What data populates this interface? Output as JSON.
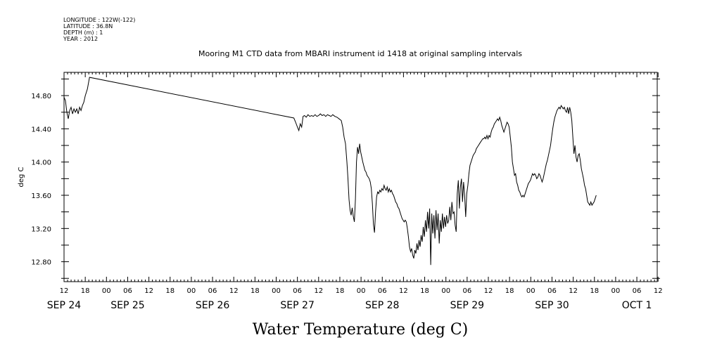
{
  "header": {
    "lines": [
      "LONGITUDE : 122W(-122)",
      "LATITUDE : 36.8N",
      "DEPTH (m) : 1",
      "YEAR : 2012"
    ]
  },
  "chart_data": {
    "type": "line",
    "title": "Mooring M1 CTD data from MBARI instrument id 1418 at original sampling intervals",
    "ylabel": "deg C",
    "xlabel": "Water Temperature (deg C)",
    "ylim": [
      12.56,
      15.08
    ],
    "yticks": [
      12.8,
      13.2,
      13.6,
      14.0,
      14.4,
      14.8
    ],
    "ytick_labels": [
      "12.80",
      "13.20",
      "13.60",
      "14.00",
      "14.40",
      "14.80"
    ],
    "xlim_hours": [
      0,
      144
    ],
    "x_hour_labels": [
      "12",
      "18",
      "00",
      "06",
      "12",
      "18",
      "00",
      "06",
      "12",
      "18",
      "00",
      "06",
      "12",
      "18",
      "00",
      "06",
      "12",
      "18",
      "00",
      "06",
      "12",
      "18",
      "00",
      "06",
      "12",
      "18",
      "00",
      "06",
      "12",
      "18",
      "00",
      "06",
      "12",
      "18",
      "00",
      "06",
      "12",
      "18",
      "00",
      "06",
      "12"
    ],
    "x_day_labels": [
      "SEP 24",
      "SEP 25",
      "SEP 26",
      "SEP 27",
      "SEP 28",
      "SEP 29",
      "SEP 30",
      "OCT 1"
    ],
    "x_day_hours": [
      0,
      18,
      42,
      66,
      90,
      114,
      138,
      162
    ],
    "series": [
      {
        "color": "#000000",
        "points": [
          [
            0,
            14.78
          ],
          [
            0.4,
            14.74
          ],
          [
            0.8,
            14.6
          ],
          [
            1.2,
            14.52
          ],
          [
            1.6,
            14.62
          ],
          [
            2.0,
            14.66
          ],
          [
            2.4,
            14.58
          ],
          [
            2.8,
            14.64
          ],
          [
            3.2,
            14.6
          ],
          [
            3.6,
            14.64
          ],
          [
            4.0,
            14.58
          ],
          [
            4.4,
            14.66
          ],
          [
            4.8,
            14.62
          ],
          [
            5.2,
            14.68
          ],
          [
            5.6,
            14.72
          ],
          [
            6,
            14.8
          ],
          [
            6.6,
            14.88
          ],
          [
            7.2,
            15.02
          ],
          [
            65,
            14.53
          ],
          [
            65.5,
            14.48
          ],
          [
            66,
            14.42
          ],
          [
            66.4,
            14.38
          ],
          [
            66.8,
            14.46
          ],
          [
            67.2,
            14.42
          ],
          [
            67.6,
            14.55
          ],
          [
            68,
            14.56
          ],
          [
            68.5,
            14.54
          ],
          [
            69,
            14.57
          ],
          [
            69.5,
            14.55
          ],
          [
            70,
            14.56
          ],
          [
            70.5,
            14.55
          ],
          [
            71,
            14.57
          ],
          [
            71.5,
            14.55
          ],
          [
            72,
            14.56
          ],
          [
            72.5,
            14.58
          ],
          [
            73,
            14.56
          ],
          [
            73.5,
            14.57
          ],
          [
            74,
            14.55
          ],
          [
            74.5,
            14.57
          ],
          [
            75,
            14.56
          ],
          [
            75.5,
            14.55
          ],
          [
            76,
            14.57
          ],
          [
            76.6,
            14.55
          ],
          [
            77.2,
            14.54
          ],
          [
            77.8,
            14.52
          ],
          [
            78.4,
            14.5
          ],
          [
            78.8,
            14.42
          ],
          [
            79.2,
            14.3
          ],
          [
            79.6,
            14.22
          ],
          [
            80.0,
            14.0
          ],
          [
            80.3,
            13.8
          ],
          [
            80.6,
            13.55
          ],
          [
            80.9,
            13.42
          ],
          [
            81.2,
            13.36
          ],
          [
            81.5,
            13.45
          ],
          [
            81.8,
            13.35
          ],
          [
            82.1,
            13.28
          ],
          [
            82.4,
            13.55
          ],
          [
            82.7,
            14.0
          ],
          [
            83.0,
            14.18
          ],
          [
            83.3,
            14.1
          ],
          [
            83.6,
            14.22
          ],
          [
            83.9,
            14.12
          ],
          [
            84.2,
            14.06
          ],
          [
            84.5,
            14.0
          ],
          [
            84.8,
            13.95
          ],
          [
            85.1,
            13.9
          ],
          [
            85.4,
            13.88
          ],
          [
            85.7,
            13.84
          ],
          [
            86.0,
            13.82
          ],
          [
            86.3,
            13.8
          ],
          [
            86.6,
            13.76
          ],
          [
            86.9,
            13.68
          ],
          [
            87.2,
            13.5
          ],
          [
            87.5,
            13.25
          ],
          [
            87.8,
            13.15
          ],
          [
            88.1,
            13.4
          ],
          [
            88.4,
            13.58
          ],
          [
            88.7,
            13.64
          ],
          [
            89.0,
            13.62
          ],
          [
            89.3,
            13.66
          ],
          [
            89.6,
            13.64
          ],
          [
            89.9,
            13.68
          ],
          [
            90.2,
            13.66
          ],
          [
            90.5,
            13.72
          ],
          [
            90.8,
            13.68
          ],
          [
            91.1,
            13.66
          ],
          [
            91.4,
            13.7
          ],
          [
            91.7,
            13.64
          ],
          [
            92.0,
            13.68
          ],
          [
            92.3,
            13.64
          ],
          [
            92.6,
            13.66
          ],
          [
            92.9,
            13.62
          ],
          [
            93.2,
            13.6
          ],
          [
            93.5,
            13.56
          ],
          [
            93.8,
            13.52
          ],
          [
            94.1,
            13.5
          ],
          [
            94.4,
            13.46
          ],
          [
            94.7,
            13.44
          ],
          [
            95.0,
            13.4
          ],
          [
            95.3,
            13.36
          ],
          [
            95.6,
            13.32
          ],
          [
            95.9,
            13.3
          ],
          [
            96.2,
            13.28
          ],
          [
            96.5,
            13.3
          ],
          [
            96.8,
            13.28
          ],
          [
            97.1,
            13.2
          ],
          [
            97.4,
            13.1
          ],
          [
            97.7,
            12.98
          ],
          [
            98.0,
            12.92
          ],
          [
            98.3,
            12.96
          ],
          [
            98.6,
            12.88
          ],
          [
            98.9,
            12.84
          ],
          [
            99.2,
            12.94
          ],
          [
            99.5,
            12.9
          ],
          [
            99.8,
            13.02
          ],
          [
            100.1,
            12.94
          ],
          [
            100.4,
            13.06
          ],
          [
            100.7,
            12.98
          ],
          [
            101.0,
            13.12
          ],
          [
            101.3,
            13.04
          ],
          [
            101.6,
            13.22
          ],
          [
            101.9,
            13.1
          ],
          [
            102.2,
            13.3
          ],
          [
            102.5,
            13.16
          ],
          [
            102.8,
            13.4
          ],
          [
            103.1,
            13.2
          ],
          [
            103.4,
            13.44
          ],
          [
            103.7,
            12.76
          ],
          [
            104.0,
            13.38
          ],
          [
            104.3,
            13.14
          ],
          [
            104.6,
            13.36
          ],
          [
            104.9,
            13.08
          ],
          [
            105.2,
            13.42
          ],
          [
            105.5,
            13.18
          ],
          [
            105.8,
            13.38
          ],
          [
            106.1,
            13.02
          ],
          [
            106.4,
            13.3
          ],
          [
            106.7,
            13.16
          ],
          [
            107.0,
            13.38
          ],
          [
            107.3,
            13.2
          ],
          [
            107.6,
            13.34
          ],
          [
            107.9,
            13.22
          ],
          [
            108.2,
            13.36
          ],
          [
            108.5,
            13.26
          ],
          [
            108.8,
            13.3
          ],
          [
            109.1,
            13.46
          ],
          [
            109.4,
            13.3
          ],
          [
            109.7,
            13.52
          ],
          [
            110.0,
            13.38
          ],
          [
            110.3,
            13.4
          ],
          [
            110.6,
            13.24
          ],
          [
            110.9,
            13.16
          ],
          [
            111.2,
            13.62
          ],
          [
            111.5,
            13.78
          ],
          [
            111.8,
            13.44
          ],
          [
            112.1,
            13.7
          ],
          [
            112.4,
            13.8
          ],
          [
            112.7,
            13.52
          ],
          [
            113.0,
            13.76
          ],
          [
            113.3,
            13.6
          ],
          [
            113.6,
            13.34
          ],
          [
            113.9,
            13.62
          ],
          [
            114.2,
            13.72
          ],
          [
            114.5,
            13.86
          ],
          [
            114.8,
            13.96
          ],
          [
            115.1,
            14.0
          ],
          [
            115.4,
            14.04
          ],
          [
            115.7,
            14.08
          ],
          [
            116.0,
            14.1
          ],
          [
            116.3,
            14.12
          ],
          [
            116.6,
            14.16
          ],
          [
            116.9,
            14.18
          ],
          [
            117.2,
            14.2
          ],
          [
            117.5,
            14.22
          ],
          [
            117.8,
            14.24
          ],
          [
            118.1,
            14.26
          ],
          [
            118.4,
            14.28
          ],
          [
            118.7,
            14.28
          ],
          [
            119.0,
            14.3
          ],
          [
            119.3,
            14.28
          ],
          [
            119.6,
            14.32
          ],
          [
            119.9,
            14.28
          ],
          [
            120.2,
            14.32
          ],
          [
            120.5,
            14.3
          ],
          [
            120.8,
            14.36
          ],
          [
            121.1,
            14.4
          ],
          [
            121.4,
            14.42
          ],
          [
            121.7,
            14.46
          ],
          [
            122.0,
            14.48
          ],
          [
            122.3,
            14.5
          ],
          [
            122.6,
            14.52
          ],
          [
            122.9,
            14.5
          ],
          [
            123.2,
            14.54
          ],
          [
            123.5,
            14.5
          ],
          [
            123.8,
            14.44
          ],
          [
            124.1,
            14.4
          ],
          [
            124.4,
            14.36
          ],
          [
            124.7,
            14.4
          ],
          [
            125.0,
            14.44
          ],
          [
            125.3,
            14.48
          ],
          [
            125.6,
            14.46
          ],
          [
            125.9,
            14.42
          ],
          [
            126.2,
            14.3
          ],
          [
            126.5,
            14.18
          ],
          [
            126.8,
            14.0
          ],
          [
            127.1,
            13.92
          ],
          [
            127.4,
            13.84
          ],
          [
            127.7,
            13.86
          ],
          [
            128.0,
            13.76
          ],
          [
            128.3,
            13.72
          ],
          [
            128.6,
            13.66
          ],
          [
            128.9,
            13.64
          ],
          [
            129.2,
            13.6
          ],
          [
            129.5,
            13.58
          ],
          [
            129.8,
            13.6
          ],
          [
            130.1,
            13.58
          ],
          [
            130.4,
            13.62
          ],
          [
            130.7,
            13.66
          ],
          [
            131.0,
            13.7
          ],
          [
            131.3,
            13.74
          ],
          [
            131.6,
            13.76
          ],
          [
            131.9,
            13.78
          ],
          [
            132.2,
            13.82
          ],
          [
            132.5,
            13.86
          ],
          [
            132.8,
            13.84
          ],
          [
            133.1,
            13.86
          ],
          [
            133.4,
            13.84
          ],
          [
            133.7,
            13.8
          ],
          [
            134.0,
            13.82
          ],
          [
            134.3,
            13.86
          ],
          [
            134.6,
            13.84
          ],
          [
            134.9,
            13.8
          ],
          [
            135.2,
            13.76
          ],
          [
            135.5,
            13.8
          ],
          [
            135.8,
            13.86
          ],
          [
            136.1,
            13.92
          ],
          [
            136.4,
            13.98
          ],
          [
            136.7,
            14.02
          ],
          [
            137.0,
            14.08
          ],
          [
            137.3,
            14.14
          ],
          [
            137.6,
            14.2
          ],
          [
            137.9,
            14.3
          ],
          [
            138.2,
            14.4
          ],
          [
            138.5,
            14.48
          ],
          [
            138.8,
            14.54
          ],
          [
            139.1,
            14.58
          ],
          [
            139.4,
            14.62
          ],
          [
            139.7,
            14.64
          ],
          [
            140.0,
            14.66
          ],
          [
            140.3,
            14.64
          ],
          [
            140.6,
            14.68
          ],
          [
            140.9,
            14.66
          ],
          [
            141.2,
            14.64
          ],
          [
            141.5,
            14.66
          ],
          [
            141.8,
            14.62
          ],
          [
            142.1,
            14.6
          ],
          [
            142.4,
            14.66
          ],
          [
            142.7,
            14.58
          ],
          [
            143.0,
            14.66
          ],
          [
            143.3,
            14.6
          ],
          [
            143.6,
            14.5
          ],
          [
            143.9,
            14.3
          ],
          [
            144.2,
            14.1
          ],
          [
            144.5,
            14.2
          ],
          [
            144.8,
            14.06
          ],
          [
            145.1,
            14.0
          ],
          [
            145.4,
            14.08
          ],
          [
            145.7,
            14.1
          ],
          [
            146.0,
            14.02
          ],
          [
            146.3,
            13.92
          ],
          [
            146.6,
            13.86
          ],
          [
            146.9,
            13.8
          ],
          [
            147.2,
            13.72
          ],
          [
            147.5,
            13.68
          ],
          [
            147.8,
            13.6
          ],
          [
            148.1,
            13.52
          ],
          [
            148.4,
            13.5
          ],
          [
            148.7,
            13.48
          ],
          [
            149.0,
            13.52
          ],
          [
            149.3,
            13.48
          ],
          [
            149.6,
            13.5
          ],
          [
            149.9,
            13.52
          ],
          [
            150.2,
            13.56
          ],
          [
            150.5,
            13.6
          ]
        ]
      }
    ]
  }
}
